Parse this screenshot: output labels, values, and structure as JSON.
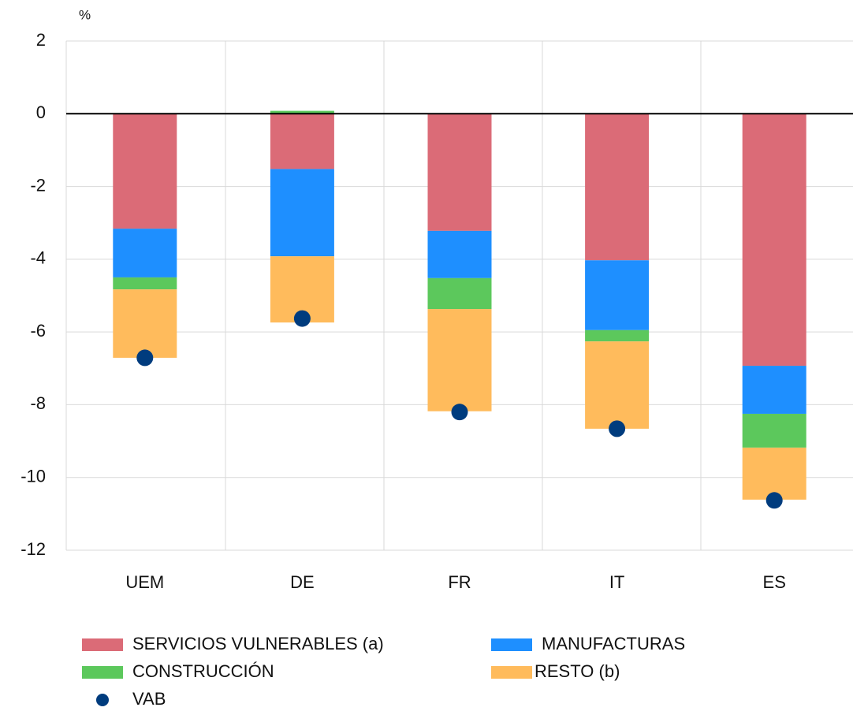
{
  "chart_data": {
    "type": "bar",
    "stacked": true,
    "y_unit": "%",
    "categories": [
      "UEM",
      "DE",
      "FR",
      "IT",
      "ES"
    ],
    "series": [
      {
        "name": "SERVICIOS VULNERABLES (a)",
        "color": "#db6b77",
        "values": [
          -3.16,
          -1.52,
          -3.22,
          -4.03,
          -6.93
        ]
      },
      {
        "name": "MANUFACTURAS",
        "color": "#1e8fff",
        "values": [
          -1.34,
          -2.4,
          -1.3,
          -1.92,
          -1.32
        ]
      },
      {
        "name": "CONSTRUCCIÓN",
        "color": "#5cc85c",
        "values": [
          -0.33,
          0.08,
          -0.85,
          -0.31,
          -0.93
        ]
      },
      {
        "name": "RESTO (b)",
        "color": "#ffbb5c",
        "values": [
          -1.88,
          -1.82,
          -2.81,
          -2.4,
          -1.43
        ]
      },
      {
        "name": "VAB",
        "color": "#003c7e",
        "type": "scatter",
        "values": [
          -6.71,
          -5.63,
          -8.2,
          -8.66,
          -10.63
        ]
      }
    ],
    "ylim": [
      -12,
      2
    ],
    "yticks": [
      -12,
      -10,
      -8,
      -6,
      -4,
      -2,
      0,
      2
    ],
    "grid": true
  }
}
